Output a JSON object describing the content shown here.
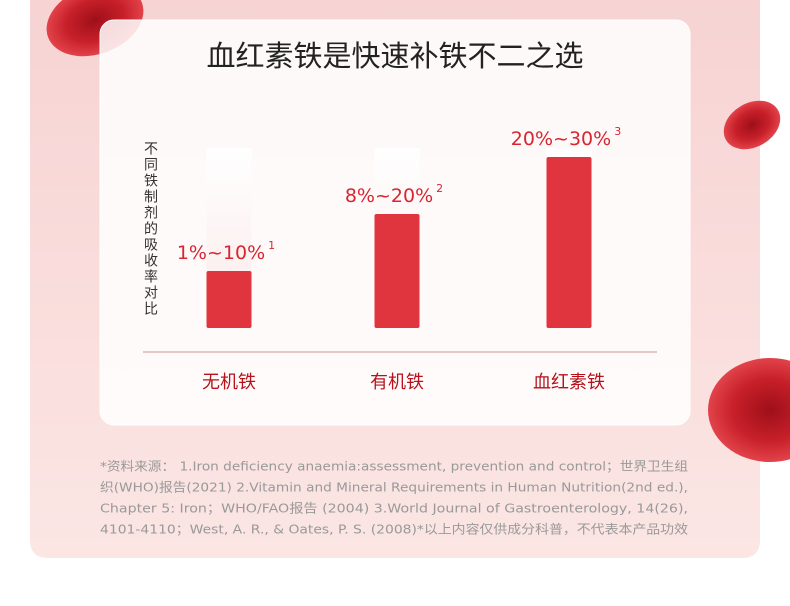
{
  "chart_data": {
    "type": "bar",
    "title": "血红素铁是快速补铁不二之选",
    "y_label": "不同铁制剂的吸收率对比",
    "categories": [
      "无机铁",
      "有机铁",
      "血红素铁"
    ],
    "values": [
      10,
      20,
      30
    ],
    "value_labels": [
      "1%~10%",
      "8%~20%",
      "20%~30%"
    ],
    "footnote_marks": [
      "1",
      "2",
      "3"
    ],
    "color": "#e0353f",
    "source_lines": [
      "*资料来源： 1.Iron deficiency anaemia:assessment, prevention and control；世界卫生组",
      "织(WHO)报告(2021) 2.Vitamin and Mineral Requirements in Human Nutrition(2nd ed.),",
      "Chapter 5: Iron；WHO/FAO报告 (2004) 3.World Journal of Gastroenterology, 14(26),",
      "4101-4110；West, A. R., & Oates, P. S. (2008)*以上内容仅供成分科普，不代表本产品功效"
    ]
  }
}
